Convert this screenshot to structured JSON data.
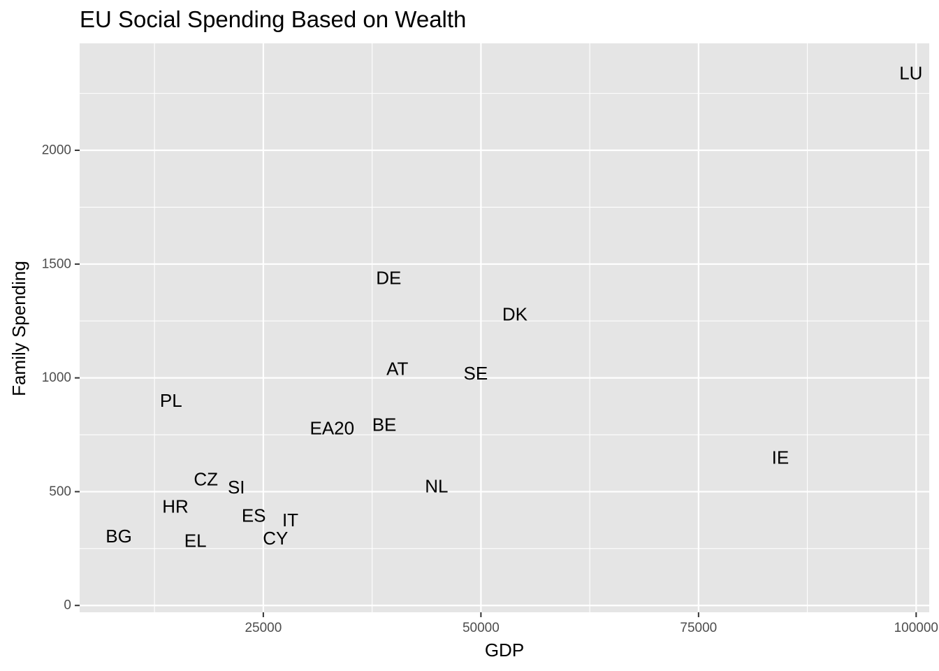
{
  "chart_data": {
    "type": "scatter",
    "marker": "text-label",
    "title": "EU Social Spending Based on Wealth",
    "xlabel": "GDP",
    "ylabel": "Family Spending",
    "xlim": [
      3900,
      101500
    ],
    "ylim": [
      -30,
      2470
    ],
    "x_ticks": [
      25000,
      50000,
      75000,
      100000
    ],
    "x_tick_labels": [
      "25000",
      "50000",
      "75000",
      "100000"
    ],
    "y_ticks": [
      0,
      500,
      1000,
      1500,
      2000
    ],
    "y_tick_labels": [
      "0",
      "500",
      "1000",
      "1500",
      "2000"
    ],
    "x_minor_ticks": [
      12500,
      37500,
      62500,
      87500
    ],
    "y_minor_ticks": [
      250,
      750,
      1250,
      1750,
      2250
    ],
    "grid": true,
    "legend": "none",
    "colors": {
      "panel_background": "#e5e5e5",
      "grid_line": "#ffffff",
      "tick_label": "#4d4d4d",
      "tick_mark": "#333333",
      "text": "#000000"
    },
    "points": [
      {
        "label": "LU",
        "x": 99400,
        "y": 2340
      },
      {
        "label": "DE",
        "x": 39400,
        "y": 1440
      },
      {
        "label": "DK",
        "x": 53900,
        "y": 1280
      },
      {
        "label": "AT",
        "x": 40400,
        "y": 1040
      },
      {
        "label": "SE",
        "x": 49400,
        "y": 1020
      },
      {
        "label": "PL",
        "x": 14400,
        "y": 900
      },
      {
        "label": "BE",
        "x": 38900,
        "y": 795
      },
      {
        "label": "EA20",
        "x": 32900,
        "y": 780
      },
      {
        "label": "IE",
        "x": 84400,
        "y": 650
      },
      {
        "label": "CZ",
        "x": 18400,
        "y": 555
      },
      {
        "label": "SI",
        "x": 21900,
        "y": 520
      },
      {
        "label": "NL",
        "x": 44900,
        "y": 525
      },
      {
        "label": "HR",
        "x": 14900,
        "y": 435
      },
      {
        "label": "ES",
        "x": 23900,
        "y": 395
      },
      {
        "label": "IT",
        "x": 28100,
        "y": 375
      },
      {
        "label": "BG",
        "x": 8400,
        "y": 305
      },
      {
        "label": "EL",
        "x": 17200,
        "y": 285
      },
      {
        "label": "CY",
        "x": 26400,
        "y": 295
      }
    ]
  }
}
